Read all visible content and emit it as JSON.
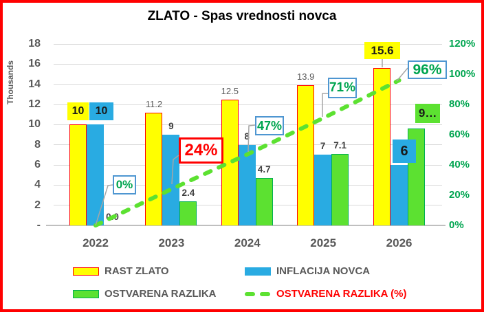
{
  "frame": {
    "border_color": "#FF0000",
    "background": "#FFFFFF"
  },
  "chart_data": {
    "type": "combo",
    "title": "ZLATO - Spas vrednosti novca",
    "categories": [
      "2022",
      "2023",
      "2024",
      "2025",
      "2026"
    ],
    "series": [
      {
        "name": "RAST ZLATO",
        "type": "bar",
        "color": "#FFFF00",
        "border_color": "#FF0000",
        "values": [
          10,
          11.2,
          12.5,
          13.9,
          15.6
        ],
        "data_labels": [
          "10",
          "11.2",
          "12.5",
          "13.9",
          "15.6"
        ]
      },
      {
        "name": "INFLACIJA NOVCA",
        "type": "bar",
        "color": "#29ABE2",
        "values": [
          10,
          9,
          8,
          7,
          6
        ],
        "data_labels": [
          "10",
          "9",
          "8",
          "7",
          "6"
        ]
      },
      {
        "name": "OSTVARENA RAZLIKA",
        "type": "bar",
        "color": "#5CE131",
        "border_color": "#00B050",
        "values": [
          0.0,
          2.4,
          4.7,
          7.1,
          9.6
        ],
        "data_labels": [
          "0.0",
          "2.4",
          "4.7",
          "7.1",
          "9…"
        ]
      },
      {
        "name": "OSTVARENA RAZLIKA (%)",
        "type": "line",
        "axis": "right",
        "line_style": "dashed",
        "color": "#5CE131",
        "values": [
          0,
          24,
          47,
          71,
          96
        ],
        "data_labels": [
          "0%",
          "24%",
          "47%",
          "71%",
          "96%"
        ]
      }
    ],
    "left_axis": {
      "title": "Thousands",
      "ticks": [
        "18",
        "16",
        "14",
        "12",
        "10",
        "8",
        "6",
        "4",
        "2",
        "-"
      ],
      "min": 0,
      "max": 18,
      "tick_step": 2,
      "text_color": "#595959"
    },
    "right_axis": {
      "ticks": [
        "120%",
        "100%",
        "80%",
        "60%",
        "40%",
        "20%",
        "0%"
      ],
      "min": 0,
      "max": 120,
      "tick_step": 20,
      "text_color": "#00A550"
    },
    "x_axis": {
      "labels": [
        "2022",
        "2023",
        "2024",
        "2025",
        "2026"
      ],
      "text_color": "#595959"
    },
    "grid": true,
    "legend": {
      "position": "bottom",
      "items": [
        {
          "label": "RAST ZLATO",
          "swatch": "bar",
          "color": "#FFFF00",
          "swatch_border": "#FF0000",
          "label_color": "#595959"
        },
        {
          "label": "INFLACIJA NOVCA",
          "swatch": "bar",
          "color": "#29ABE2",
          "swatch_border": "#29ABE2",
          "label_color": "#595959"
        },
        {
          "label": "OSTVARENA RAZLIKA",
          "swatch": "bar",
          "color": "#5CE131",
          "swatch_border": "#00B050",
          "label_color": "#595959"
        },
        {
          "label": "OSTVARENA RAZLIKA (%)",
          "swatch": "dash",
          "color": "#5CE131",
          "label_color": "#FF0000"
        }
      ]
    },
    "colors": {
      "callout_border": "#4E96D1",
      "callout_text": "#00A550",
      "highlight_red": "#FF0000",
      "gridline": "#D9D9D9",
      "axis_line": "#BFBFBF",
      "leader": "#A6A6A6",
      "label_gray": "#595959",
      "label_dark": "#3F3F3F"
    }
  }
}
